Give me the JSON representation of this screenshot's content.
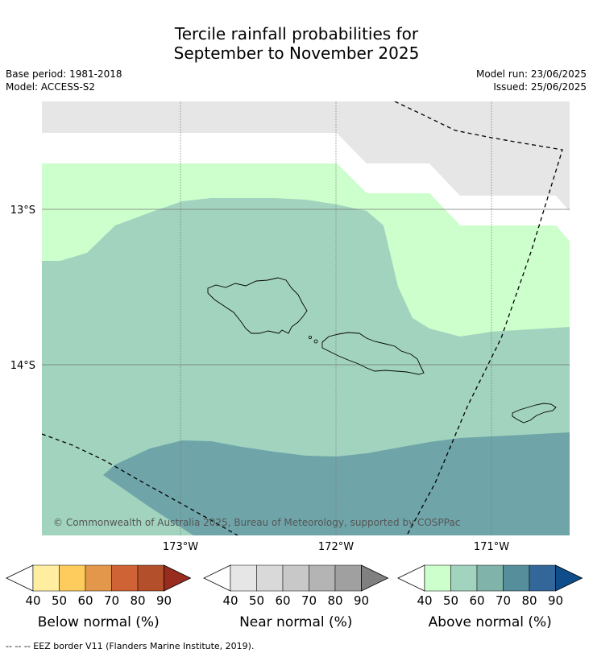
{
  "title": {
    "line1": "Tercile rainfall probabilities for",
    "line2": "September to November 2025"
  },
  "meta": {
    "base_period": "Base period: 1981-2018",
    "model": "Model: ACCESS-S2",
    "model_run": "Model run: 23/06/2025",
    "issued": "Issued: 25/06/2025"
  },
  "map": {
    "lat_labels": [
      "13°S",
      "14°S"
    ],
    "lon_labels": [
      "173°W",
      "172°W",
      "171°W"
    ],
    "copyright": "© Commonwealth of Australia 2025, Bureau of Meteorology, supported by COSPPac",
    "region_colors": {
      "no_data": "#e6e6e6",
      "near_normal_white": "#ffffff",
      "above_40_50": "#ccffcc",
      "above_50_60": "#a1d3bf",
      "above_60_70": "#6fa5a9"
    },
    "eez_line": "dashed"
  },
  "colorbars": [
    {
      "title": "Below normal (%)",
      "ticks": [
        "40",
        "50",
        "60",
        "70",
        "80",
        "90"
      ],
      "colors": [
        "#ffffff",
        "#ffeda0",
        "#fecc5c",
        "#e3974a",
        "#cf6335",
        "#b34f2a",
        "#982c1f"
      ]
    },
    {
      "title": "Near normal (%)",
      "ticks": [
        "40",
        "50",
        "60",
        "70",
        "80",
        "90"
      ],
      "colors": [
        "#ffffff",
        "#e6e6e6",
        "#d9d9d9",
        "#c8c8c8",
        "#b4b4b4",
        "#a0a0a0",
        "#808080"
      ]
    },
    {
      "title": "Above normal (%)",
      "ticks": [
        "40",
        "50",
        "60",
        "70",
        "80",
        "90"
      ],
      "colors": [
        "#ffffff",
        "#ccffcc",
        "#a1d3bf",
        "#80b4aa",
        "#568f9b",
        "#336699",
        "#0f4c8a"
      ]
    }
  ],
  "footer": "--  --  -- EEZ border V11 (Flanders Marine Institute, 2019)."
}
